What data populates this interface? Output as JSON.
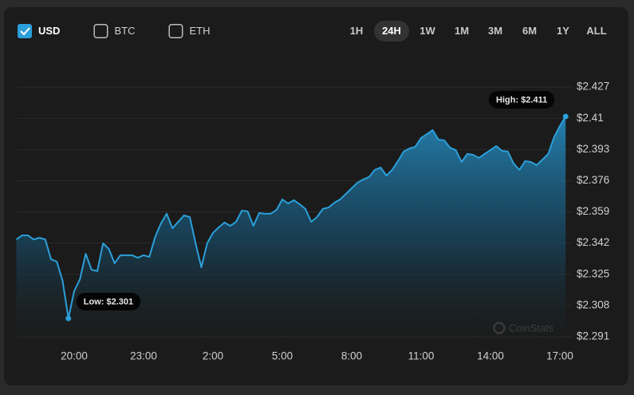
{
  "currencies": [
    {
      "label": "USD",
      "checked": true
    },
    {
      "label": "BTC",
      "checked": false
    },
    {
      "label": "ETH",
      "checked": false
    }
  ],
  "ranges": [
    {
      "label": "1H",
      "active": false
    },
    {
      "label": "24H",
      "active": true
    },
    {
      "label": "1W",
      "active": false
    },
    {
      "label": "1M",
      "active": false
    },
    {
      "label": "3M",
      "active": false
    },
    {
      "label": "6M",
      "active": false
    },
    {
      "label": "1Y",
      "active": false
    },
    {
      "label": "ALL",
      "active": false
    }
  ],
  "watermark": "CoinStats",
  "chart_data": {
    "type": "area",
    "x": [
      "17:30",
      "17:45",
      "18:00",
      "18:15",
      "18:30",
      "18:45",
      "19:00",
      "19:15",
      "19:30",
      "19:45",
      "20:00",
      "20:15",
      "20:30",
      "20:45",
      "21:00",
      "21:15",
      "21:30",
      "21:45",
      "22:00",
      "22:15",
      "22:30",
      "22:45",
      "23:00",
      "23:15",
      "23:30",
      "23:45",
      "0:00",
      "0:15",
      "0:30",
      "0:45",
      "1:00",
      "1:15",
      "1:30",
      "1:45",
      "2:00",
      "2:15",
      "2:30",
      "2:45",
      "3:00",
      "3:15",
      "3:30",
      "3:45",
      "4:00",
      "4:15",
      "4:30",
      "4:45",
      "5:00",
      "5:15",
      "5:30",
      "5:45",
      "6:00",
      "6:15",
      "6:30",
      "6:45",
      "7:00",
      "7:15",
      "7:30",
      "7:45",
      "8:00",
      "8:15",
      "8:30",
      "8:45",
      "9:00",
      "9:15",
      "9:30",
      "9:45",
      "10:00",
      "10:15",
      "10:30",
      "10:45",
      "11:00",
      "11:15",
      "11:30",
      "11:45",
      "12:00",
      "12:15",
      "12:30",
      "12:45",
      "13:00",
      "13:15",
      "13:30",
      "13:45",
      "14:00",
      "14:15",
      "14:30",
      "14:45",
      "15:00",
      "15:15",
      "15:30",
      "15:45",
      "16:00",
      "16:15",
      "16:30",
      "16:45",
      "17:00",
      "17:15"
    ],
    "series": [
      {
        "color": "#2b9fd9",
        "values": [
          2.344,
          2.3462,
          2.3462,
          2.344,
          2.3449,
          2.344,
          2.3332,
          2.3319,
          2.3214,
          2.301,
          2.3158,
          2.3223,
          2.3362,
          2.3275,
          2.3267,
          2.3419,
          2.3388,
          2.331,
          2.3354,
          2.3354,
          2.3354,
          2.334,
          2.3354,
          2.3345,
          2.3453,
          2.3527,
          2.358,
          2.3501,
          2.3536,
          2.3571,
          2.3562,
          2.3419,
          2.3288,
          2.3419,
          2.3475,
          2.3506,
          2.3532,
          2.3514,
          2.3536,
          2.3597,
          2.3593,
          2.3514,
          2.3584,
          2.358,
          2.358,
          2.3601,
          2.3658,
          2.3636,
          2.3654,
          2.3632,
          2.3606,
          2.3536,
          2.3562,
          2.3606,
          2.3614,
          2.364,
          2.3658,
          2.3688,
          2.3719,
          2.3749,
          2.3767,
          2.378,
          2.3819,
          2.3832,
          2.3788,
          2.3819,
          2.3867,
          2.3919,
          2.3936,
          2.3945,
          2.3993,
          2.4014,
          2.4036,
          2.3984,
          2.398,
          2.394,
          2.3927,
          2.3862,
          2.3906,
          2.3901,
          2.3884,
          2.3906,
          2.3927,
          2.3949,
          2.3923,
          2.3919,
          2.3854,
          2.3819,
          2.3867,
          2.3862,
          2.3845,
          2.3875,
          2.3906,
          2.3997,
          2.4058,
          2.411
        ]
      }
    ],
    "ylim": [
      2.2875,
      2.44
    ],
    "yticks": [
      {
        "value": 2.427,
        "label": "$2.427"
      },
      {
        "value": 2.41,
        "label": "$2.41"
      },
      {
        "value": 2.393,
        "label": "$2.393"
      },
      {
        "value": 2.376,
        "label": "$2.376"
      },
      {
        "value": 2.359,
        "label": "$2.359"
      },
      {
        "value": 2.342,
        "label": "$2.342"
      },
      {
        "value": 2.325,
        "label": "$2.325"
      },
      {
        "value": 2.308,
        "label": "$2.308"
      },
      {
        "value": 2.291,
        "label": "$2.291"
      }
    ],
    "grid": true,
    "annotations": [
      {
        "x": "19:45",
        "text": "Low: $2.301"
      },
      {
        "x": "17:15",
        "text": "High: $2.411"
      }
    ]
  }
}
